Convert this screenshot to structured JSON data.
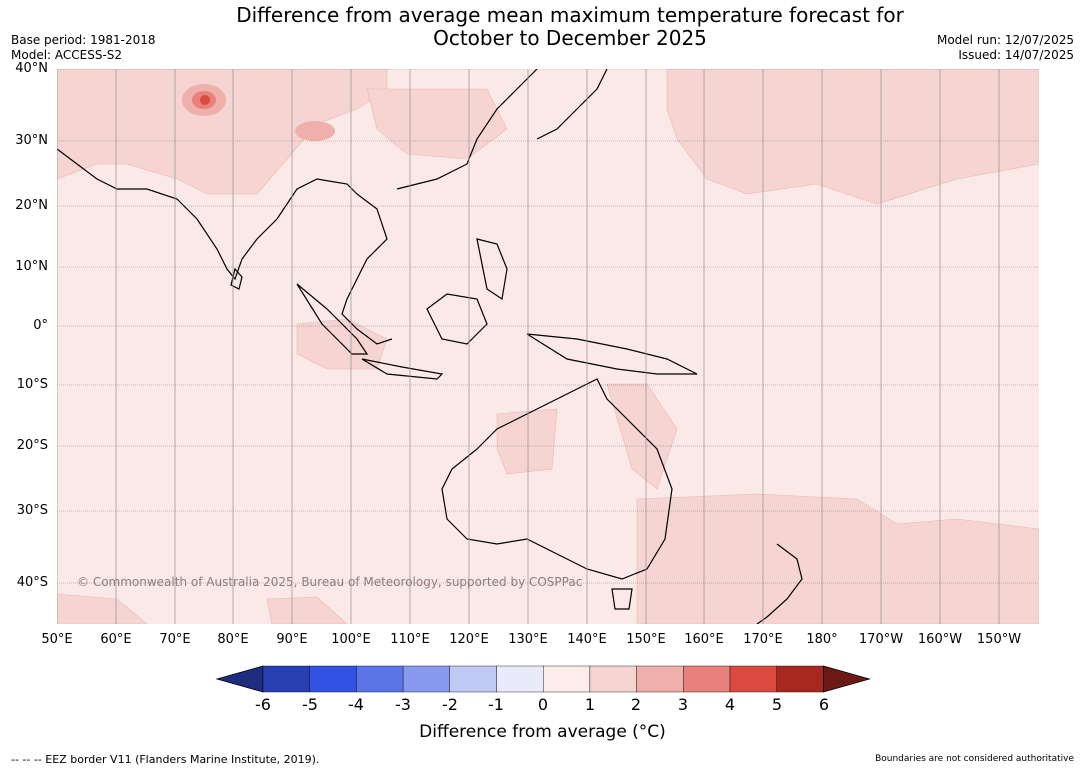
{
  "title": {
    "line1": "Difference from average mean maximum temperature forecast for",
    "line2": "October to December 2025"
  },
  "meta": {
    "base_period": "Base period: 1981-2018",
    "model": "Model: ACCESS-S2",
    "model_run": "Model run: 12/07/2025",
    "issued": "Issued: 14/07/2025"
  },
  "map": {
    "background_color": "#fbe9e7",
    "latitudes": [
      "40°N",
      "30°N",
      "20°N",
      "10°N",
      "0°",
      "10°S",
      "20°S",
      "30°S",
      "40°S"
    ],
    "longitudes": [
      "50°E",
      "60°E",
      "70°E",
      "80°E",
      "90°E",
      "100°E",
      "110°E",
      "120°E",
      "130°E",
      "140°E",
      "150°E",
      "160°E",
      "170°E",
      "180°",
      "170°W",
      "160°W",
      "150°W"
    ],
    "copyright": "© Commonwealth of Australia 2025, Bureau of Meteorology, supported by COSPPac"
  },
  "colorbar": {
    "labels": [
      "-6",
      "-5",
      "-4",
      "-3",
      "-2",
      "-1",
      "0",
      "1",
      "2",
      "3",
      "4",
      "5",
      "6"
    ],
    "colors": [
      "#1f2d80",
      "#273fb3",
      "#3252e3",
      "#5b75e8",
      "#8899ee",
      "#c1c9f5",
      "#e9ebfb",
      "#fcecea",
      "#f5d4d2",
      "#efb0ab",
      "#e8817b",
      "#da4a3e",
      "#a8281f",
      "#6d1a14"
    ],
    "title": "Difference from average (°C)"
  },
  "footer": {
    "eez": "--  --  -- EEZ border V11 (Flanders Marine Institute, 2019).",
    "boundaries": "Boundaries are not considered authoritative"
  }
}
